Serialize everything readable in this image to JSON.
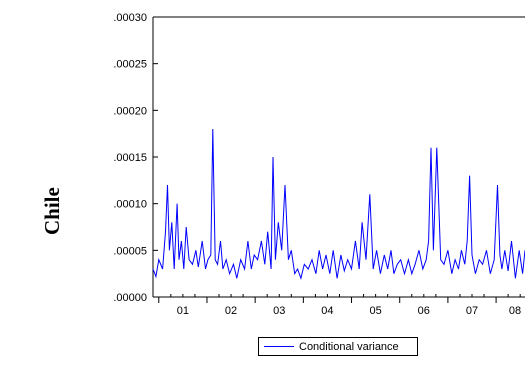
{
  "side_label": "Chile",
  "chart_data": {
    "type": "line",
    "title": "",
    "xlabel": "",
    "ylabel": "",
    "x_tick_labels": [
      "01",
      "02",
      "03",
      "04",
      "05",
      "06",
      "07",
      "08"
    ],
    "y_tick_labels": [
      ".00000",
      ".00005",
      ".00010",
      ".00015",
      ".00020",
      ".00025",
      ".00030"
    ],
    "y_ticks": [
      0,
      5e-05,
      0.0001,
      0.00015,
      0.0002,
      0.00025,
      0.0003
    ],
    "ylim": [
      0,
      0.0003
    ],
    "xlim": [
      2000.88,
      2008.6
    ],
    "grid": false,
    "legend_placement": "bottom-center",
    "line_color": "#0000ff",
    "series": [
      {
        "name": "Conditional variance",
        "x": [
          2000.88,
          2000.94,
          2001.0,
          2001.08,
          2001.14,
          2001.18,
          2001.22,
          2001.27,
          2001.32,
          2001.38,
          2001.42,
          2001.47,
          2001.52,
          2001.57,
          2001.63,
          2001.7,
          2001.77,
          2001.82,
          2001.9,
          2001.97,
          2002.02,
          2002.08,
          2002.12,
          2002.17,
          2002.22,
          2002.28,
          2002.33,
          2002.4,
          2002.47,
          2002.55,
          2002.62,
          2002.7,
          2002.78,
          2002.85,
          2002.92,
          2002.98,
          2003.05,
          2003.13,
          2003.2,
          2003.26,
          2003.33,
          2003.37,
          2003.42,
          2003.48,
          2003.55,
          2003.62,
          2003.69,
          2003.75,
          2003.82,
          2003.88,
          2003.95,
          2004.02,
          2004.1,
          2004.18,
          2004.26,
          2004.33,
          2004.4,
          2004.47,
          2004.55,
          2004.62,
          2004.7,
          2004.78,
          2004.85,
          2004.92,
          2005.0,
          2005.08,
          2005.16,
          2005.22,
          2005.3,
          2005.38,
          2005.45,
          2005.52,
          2005.6,
          2005.68,
          2005.75,
          2005.82,
          2005.88,
          2005.95,
          2006.02,
          2006.1,
          2006.18,
          2006.25,
          2006.32,
          2006.4,
          2006.48,
          2006.55,
          2006.6,
          2006.65,
          2006.7,
          2006.77,
          2006.85,
          2006.92,
          2007.0,
          2007.08,
          2007.15,
          2007.22,
          2007.28,
          2007.35,
          2007.4,
          2007.45,
          2007.5,
          2007.57,
          2007.65,
          2007.72,
          2007.8,
          2007.88,
          2007.96,
          2008.03,
          2008.08,
          2008.12,
          2008.18,
          2008.25,
          2008.32,
          2008.4,
          2008.48,
          2008.55,
          2008.6
        ],
        "values": [
          3e-05,
          2.2e-05,
          4e-05,
          3e-05,
          7e-05,
          0.00012,
          5e-05,
          8e-05,
          3e-05,
          0.0001,
          4e-05,
          6e-05,
          3e-05,
          7.5e-05,
          4e-05,
          3.5e-05,
          5e-05,
          3.2e-05,
          6e-05,
          3e-05,
          4e-05,
          4.5e-05,
          0.00018,
          4e-05,
          3.5e-05,
          6e-05,
          3e-05,
          4e-05,
          2.5e-05,
          3.5e-05,
          2e-05,
          4e-05,
          3e-05,
          6e-05,
          3e-05,
          4.5e-05,
          4e-05,
          6e-05,
          3.5e-05,
          7e-05,
          3e-05,
          0.00015,
          4e-05,
          8e-05,
          5e-05,
          0.00012,
          4e-05,
          5e-05,
          2.5e-05,
          3e-05,
          2e-05,
          3.5e-05,
          3e-05,
          4e-05,
          2.5e-05,
          5e-05,
          3e-05,
          4.5e-05,
          2.5e-05,
          5e-05,
          2e-05,
          4.5e-05,
          2.8e-05,
          4e-05,
          3e-05,
          6e-05,
          3e-05,
          8e-05,
          4e-05,
          0.00011,
          3e-05,
          5e-05,
          2.5e-05,
          4.5e-05,
          3e-05,
          5e-05,
          2.5e-05,
          3.5e-05,
          4e-05,
          2.5e-05,
          4e-05,
          2.5e-05,
          3.5e-05,
          5e-05,
          3e-05,
          4e-05,
          6e-05,
          0.00016,
          5e-05,
          0.00016,
          4e-05,
          3.5e-05,
          5e-05,
          2.5e-05,
          4e-05,
          3e-05,
          5e-05,
          3.5e-05,
          6e-05,
          0.00013,
          4.5e-05,
          2.5e-05,
          4e-05,
          3.5e-05,
          5e-05,
          2.5e-05,
          4e-05,
          0.00012,
          4.5e-05,
          3e-05,
          5e-05,
          2.8e-05,
          6e-05,
          2e-05,
          5e-05,
          2.5e-05,
          5e-05
        ]
      }
    ]
  }
}
